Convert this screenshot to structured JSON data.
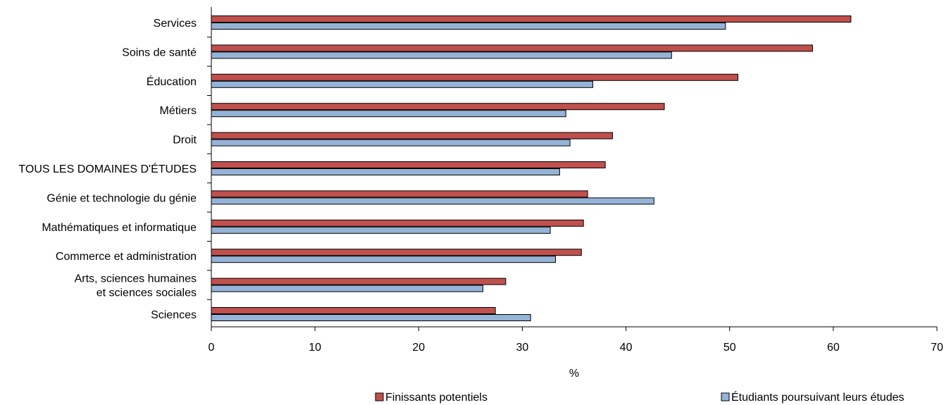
{
  "chart_data": {
    "type": "bar",
    "orientation": "horizontal",
    "categories": [
      [
        "Services"
      ],
      [
        "Soins de santé"
      ],
      [
        "Éducation"
      ],
      [
        "Métiers"
      ],
      [
        "Droit"
      ],
      [
        "TOUS LES DOMAINES D'ÉTUDES"
      ],
      [
        "Génie et technologie du génie"
      ],
      [
        "Mathématiques et informatique"
      ],
      [
        "Commerce et administration"
      ],
      [
        "Arts, sciences humaines",
        "et sciences sociales"
      ],
      [
        "Sciences"
      ]
    ],
    "series": [
      {
        "name": "Finissants potentiels",
        "color": "#c0504d",
        "values": [
          61.7,
          58.0,
          50.8,
          43.7,
          38.7,
          38.0,
          36.3,
          35.9,
          35.7,
          28.4,
          27.4
        ]
      },
      {
        "name": "Étudiants poursuivant leurs études",
        "color": "#95b3d7",
        "values": [
          49.6,
          44.4,
          36.8,
          34.2,
          34.6,
          33.6,
          42.7,
          32.7,
          33.2,
          26.2,
          30.8
        ]
      }
    ],
    "xlabel": "%",
    "xlim": [
      0,
      70
    ],
    "xticks": [
      "0",
      "10",
      "20",
      "30",
      "40",
      "50",
      "60",
      "70"
    ],
    "grid": false,
    "legend_position": "bottom"
  }
}
